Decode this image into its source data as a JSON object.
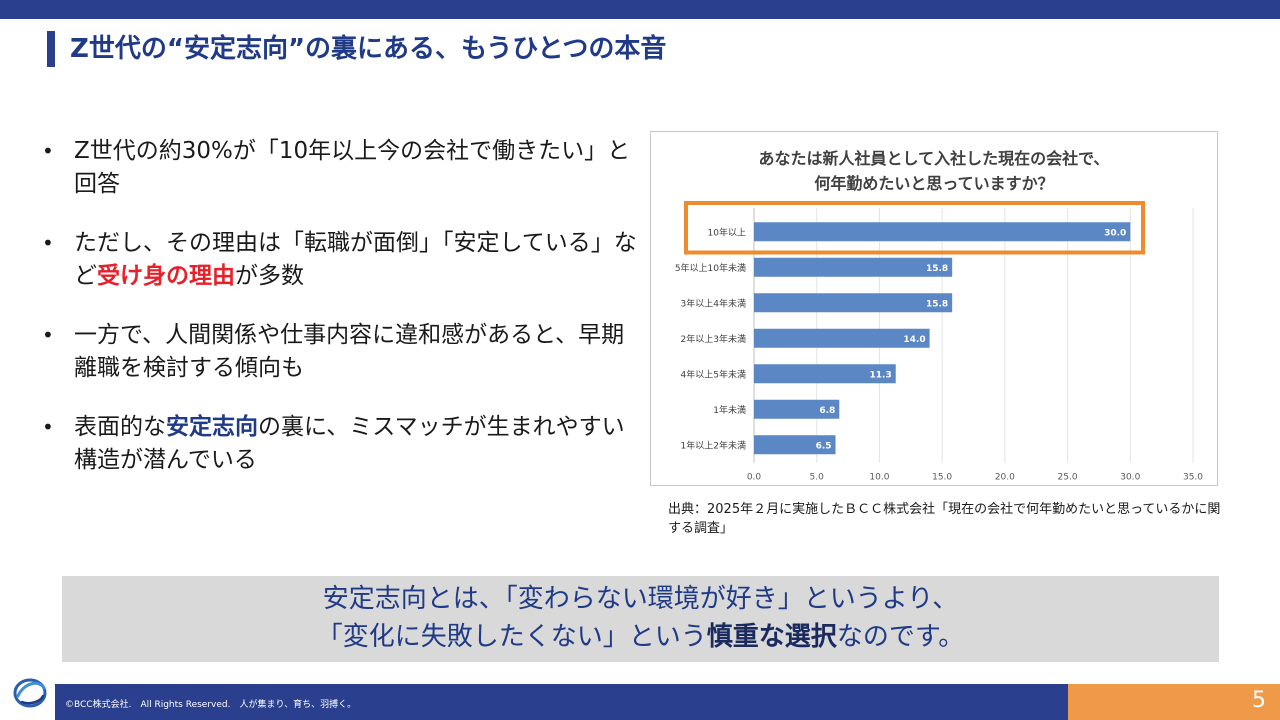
{
  "title": "Z世代の“安定志向”の裏にある、もうひとつの本音",
  "bullets": [
    {
      "parts": [
        {
          "text": "Z世代の約30%が「10年以上今の会社で働きたい」と回答",
          "style": "normal"
        }
      ]
    },
    {
      "parts": [
        {
          "text": "ただし、その理由は「転職が面倒」「安定している」など",
          "style": "normal"
        },
        {
          "text": "受け身の理由",
          "style": "red"
        },
        {
          "text": "が多数",
          "style": "normal"
        }
      ]
    },
    {
      "parts": [
        {
          "text": "一方で、人間関係や仕事内容に違和感があると、早期離職を検討する傾向も",
          "style": "normal"
        }
      ]
    },
    {
      "parts": [
        {
          "text": "表面的な",
          "style": "normal"
        },
        {
          "text": "安定志向",
          "style": "blue"
        },
        {
          "text": "の裏に、ミスマッチが生まれやすい構造が潜んでいる",
          "style": "normal"
        }
      ]
    }
  ],
  "chart_data": {
    "type": "bar",
    "orientation": "horizontal",
    "title": "あなたは新人社員として入社した現在の会社で、何年勤めたいと思っていますか？",
    "title_lines": [
      "あなたは新人社員として入社した現在の会社で、",
      "何年勤めたいと思っていますか？"
    ],
    "categories": [
      "10年以上",
      "5年以上10年未満",
      "3年以上4年未満",
      "2年以上3年未満",
      "4年以上5年未満",
      "1年未満",
      "1年以上2年未満"
    ],
    "values": [
      30.0,
      15.8,
      15.8,
      14.0,
      11.3,
      6.8,
      6.5
    ],
    "value_labels": [
      "30.0",
      "15.8",
      "15.8",
      "14.0",
      "11.3",
      "6.8",
      "6.5"
    ],
    "xlim": [
      0,
      35
    ],
    "ticks": [
      0,
      5,
      10,
      15,
      20,
      25,
      30,
      35
    ],
    "tick_labels": [
      "0.0",
      "5.0",
      "10.0",
      "15.0",
      "20.0",
      "25.0",
      "30.0",
      "35.0"
    ],
    "highlight_index": 0,
    "bar_color": "#5b87c5",
    "highlight_color": "#ef8a2e",
    "grid": true
  },
  "source": "出典：2025年２月に実施したＢＣＣ株式会社「現在の会社で何年勤めたいと思っているかに関する調査」",
  "summary": {
    "line1": "安定志向とは、「変わらない環境が好き」というより、",
    "line2_pre": "「変化に失敗したくない」という",
    "line2_strong": "慎重な選択",
    "line2_post": "なのです。"
  },
  "footer": {
    "copyright": "©BCC株式会社.　All Rights Reserved.　人が集まり、育ち、羽搏く。",
    "page_number": "5"
  },
  "colors": {
    "brand_navy": "#2b3f8f",
    "accent_orange": "#ef9a48",
    "highlight_red": "#e8202a"
  }
}
